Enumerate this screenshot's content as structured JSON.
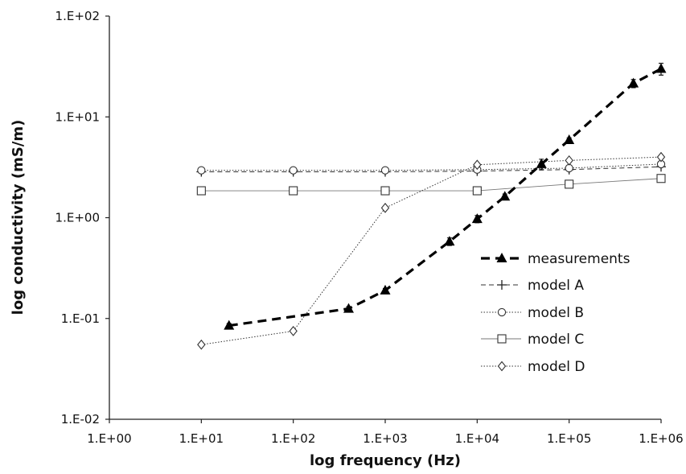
{
  "chart_data": {
    "type": "line",
    "xlabel": "log frequency (Hz)",
    "ylabel": "log conductivity (mS/m)",
    "xscale": "log",
    "yscale": "log",
    "xlim": [
      1,
      1000000
    ],
    "ylim": [
      0.01,
      100
    ],
    "x_ticks": [
      "1.E+00",
      "1.E+01",
      "1.E+02",
      "1.E+03",
      "1.E+04",
      "1.E+05",
      "1.E+06"
    ],
    "y_ticks": [
      "1.E-02",
      "1.E-01",
      "1.E+00",
      "1.E+01",
      "1.E+02"
    ],
    "grid": false,
    "legend_position": "right",
    "series": [
      {
        "name": "measurements",
        "style": "dashed",
        "marker": "triangle",
        "x": [
          20,
          400,
          1000,
          5000,
          10000,
          20000,
          50000,
          100000,
          500000,
          1000000
        ],
        "y": [
          0.085,
          0.125,
          0.19,
          0.58,
          0.97,
          1.62,
          3.4,
          5.9,
          21.5,
          30
        ],
        "error": [
          0.004,
          0.006,
          0.008,
          0.05,
          0.08,
          0.1,
          0.4,
          0.3,
          2.0,
          4.0
        ]
      },
      {
        "name": "model A",
        "style": "dashed-thin",
        "marker": "plus",
        "x": [
          10,
          100,
          1000,
          10000,
          100000,
          1000000
        ],
        "y": [
          2.85,
          2.85,
          2.85,
          2.9,
          3.0,
          3.2
        ]
      },
      {
        "name": "model B",
        "style": "dotted",
        "marker": "circle",
        "x": [
          10,
          100,
          1000,
          10000,
          100000,
          1000000
        ],
        "y": [
          2.95,
          2.95,
          2.95,
          3.0,
          3.1,
          3.4
        ]
      },
      {
        "name": "model C",
        "style": "solid-thin",
        "marker": "square",
        "x": [
          10,
          100,
          1000,
          10000,
          100000,
          1000000
        ],
        "y": [
          1.85,
          1.85,
          1.85,
          1.85,
          2.15,
          2.45
        ]
      },
      {
        "name": "model D",
        "style": "dotted",
        "marker": "diamond",
        "x": [
          10,
          100,
          1000,
          10000,
          100000,
          1000000
        ],
        "y": [
          0.055,
          0.075,
          1.25,
          3.35,
          3.7,
          4.0
        ]
      }
    ]
  }
}
